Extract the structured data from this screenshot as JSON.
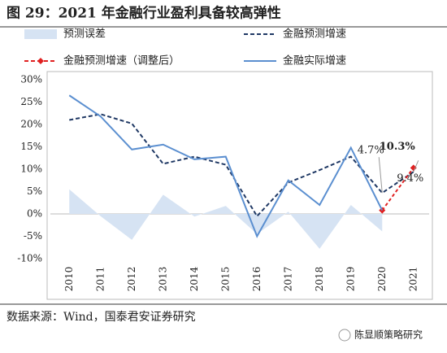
{
  "chart_data": {
    "type": "line",
    "title": "图 29：2021 年金融行业盈利具备较高弹性",
    "categories": [
      "2010",
      "2011",
      "2012",
      "2013",
      "2014",
      "2015",
      "2016",
      "2017",
      "2018",
      "2019",
      "2020",
      "2021"
    ],
    "series": [
      {
        "name": "预测误差",
        "type": "area",
        "color": "#d6e3f3",
        "values": [
          5.5,
          -0.5,
          -5.8,
          4.3,
          -0.6,
          1.8,
          -4.5,
          0.5,
          -7.8,
          2,
          -3.9,
          null
        ]
      },
      {
        "name": "金融预测增速",
        "type": "dashed",
        "color": "#1f3864",
        "values": [
          21,
          22.3,
          20.2,
          11.2,
          12.8,
          11,
          -0.5,
          7,
          9.8,
          12.8,
          4.7,
          9.4
        ],
        "value_labels": [
          null,
          null,
          null,
          null,
          null,
          null,
          null,
          null,
          null,
          null,
          "4.7%",
          "9.4%"
        ]
      },
      {
        "name": "金融预测增速（调整后）",
        "type": "dashed-marker",
        "color": "#e02020",
        "values": [
          null,
          null,
          null,
          null,
          null,
          null,
          null,
          null,
          null,
          null,
          0.8,
          10.3
        ],
        "value_labels": [
          null,
          null,
          null,
          null,
          null,
          null,
          null,
          null,
          null,
          null,
          null,
          "10.3%"
        ]
      },
      {
        "name": "金融实际增速",
        "type": "solid",
        "color": "#5b8fd0",
        "values": [
          26.5,
          21.8,
          14.4,
          15.5,
          12.2,
          12.8,
          -5,
          7.5,
          2,
          14.8,
          0.8,
          null
        ]
      }
    ],
    "ylim": [
      -10,
      30
    ],
    "yticks": [
      {
        "value": -10,
        "label": "-10%"
      },
      {
        "value": -5,
        "label": "-5%"
      },
      {
        "value": 0,
        "label": "0%"
      },
      {
        "value": 5,
        "label": "5%"
      },
      {
        "value": 10,
        "label": "10%"
      },
      {
        "value": 15,
        "label": "15%"
      },
      {
        "value": 20,
        "label": "20%"
      },
      {
        "value": 25,
        "label": "25%"
      },
      {
        "value": 30,
        "label": "30%"
      }
    ],
    "source": "数据来源：Wind，国泰君安证券研究",
    "watermark": "陈显顺策略研究"
  }
}
